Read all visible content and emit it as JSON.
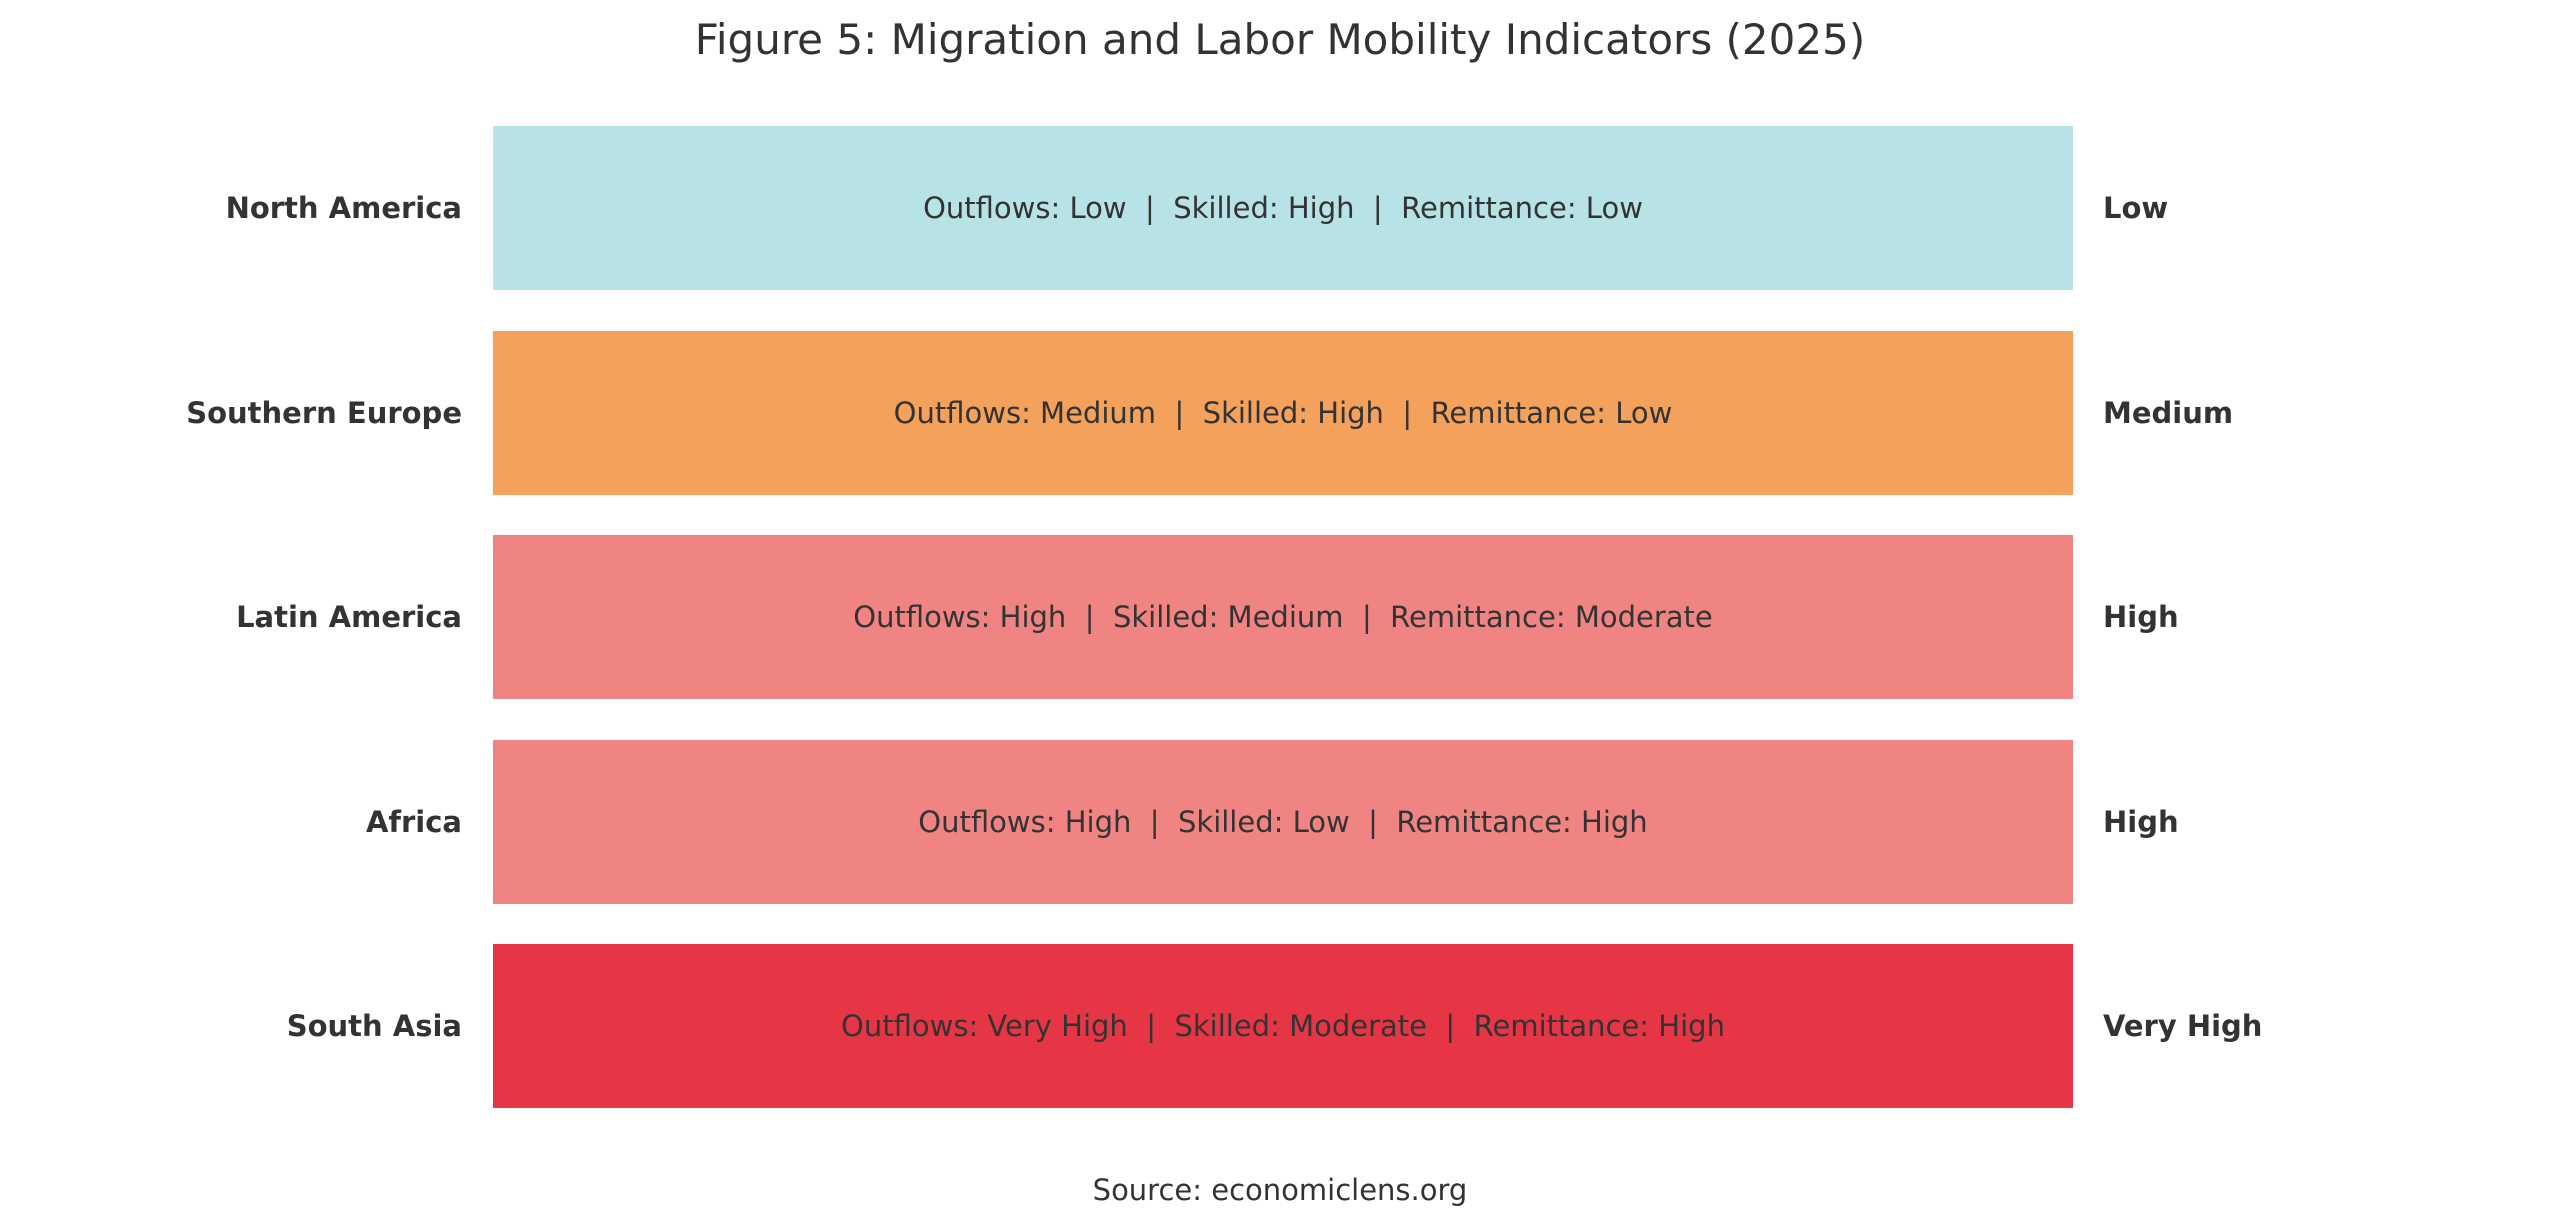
{
  "chart_data": {
    "type": "table",
    "title": "Figure 5: Migration and Labor Mobility Indicators (2025)",
    "source": "Source: economiclens.org",
    "rows": [
      {
        "region": "North America",
        "detail": "Outflows: Low  |  Skilled: High  |  Remittance: Low",
        "level": "Low",
        "color": "#b8e3e6"
      },
      {
        "region": "Southern Europe",
        "detail": "Outflows: Medium  |  Skilled: High  |  Remittance: Low",
        "level": "Medium",
        "color": "#f3a15b"
      },
      {
        "region": "Latin America",
        "detail": "Outflows: High  |  Skilled: Medium  |  Remittance: Moderate",
        "level": "High",
        "color": "#f08482"
      },
      {
        "region": "Africa",
        "detail": "Outflows: High  |  Skilled: Low  |  Remittance: High",
        "level": "High",
        "color": "#f08482"
      },
      {
        "region": "South Asia",
        "detail": "Outflows: Very High  |  Skilled: Moderate  |  Remittance: High",
        "level": "Very High",
        "color": "#e63645"
      }
    ]
  }
}
